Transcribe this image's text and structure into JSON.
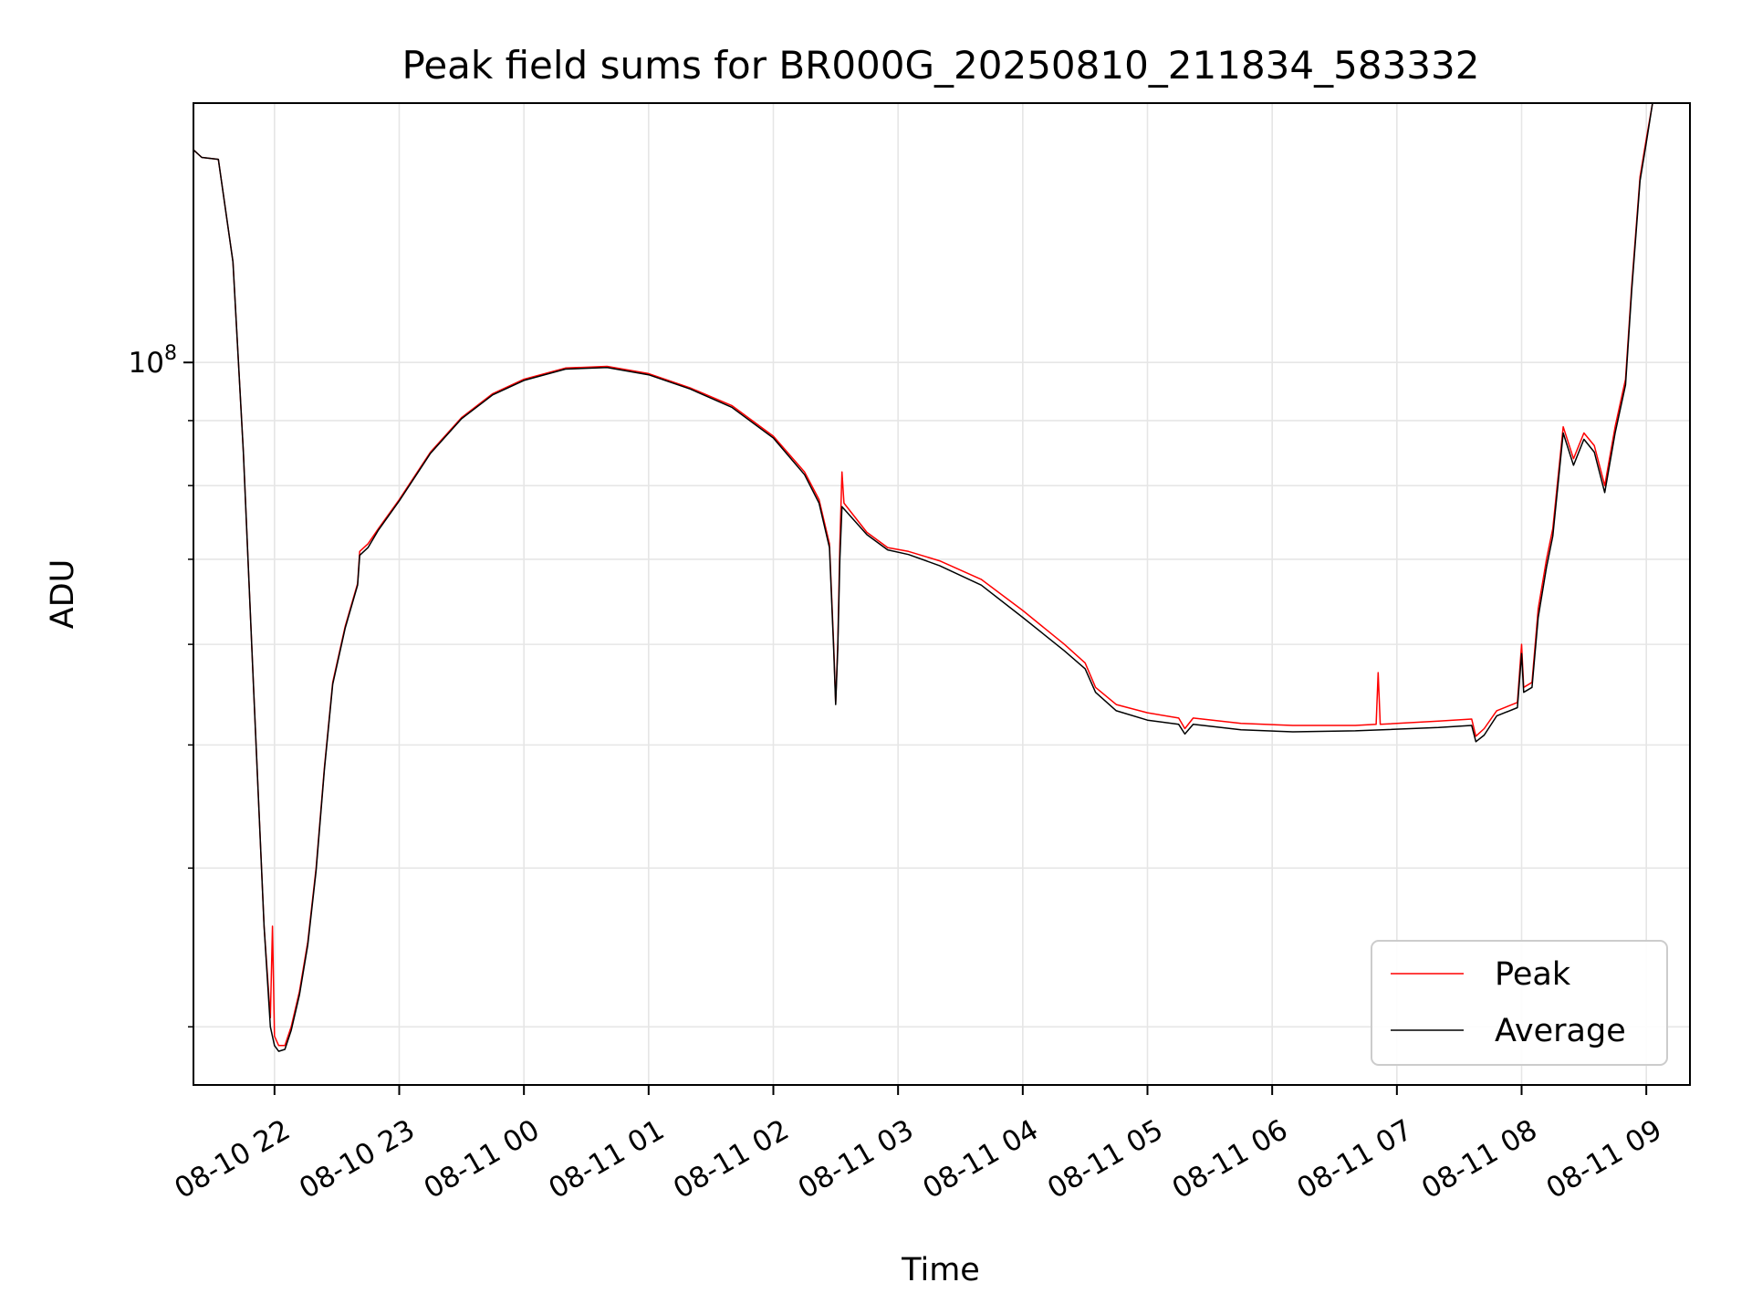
{
  "chart_data": {
    "type": "line",
    "title": "Peak field sums for BR000G_20250810_211834_583332",
    "xlabel": "Time",
    "ylabel": "ADU",
    "x_scale": "time",
    "y_scale": "log",
    "xlim": [
      "2025-08-10 21:21",
      "2025-08-11 09:21"
    ],
    "ylim": [
      27000000,
      160000000
    ],
    "y_tick_labels": [
      {
        "value": 100000000,
        "label": "10^8"
      }
    ],
    "x_tick_labels": [
      {
        "t": "2025-08-10 22:00",
        "label": "08-10 22"
      },
      {
        "t": "2025-08-10 23:00",
        "label": "08-10 23"
      },
      {
        "t": "2025-08-11 00:00",
        "label": "08-11 00"
      },
      {
        "t": "2025-08-11 01:00",
        "label": "08-11 01"
      },
      {
        "t": "2025-08-11 02:00",
        "label": "08-11 02"
      },
      {
        "t": "2025-08-11 03:00",
        "label": "08-11 03"
      },
      {
        "t": "2025-08-11 04:00",
        "label": "08-11 04"
      },
      {
        "t": "2025-08-11 05:00",
        "label": "08-11 05"
      },
      {
        "t": "2025-08-11 06:00",
        "label": "08-11 06"
      },
      {
        "t": "2025-08-11 07:00",
        "label": "08-11 07"
      },
      {
        "t": "2025-08-11 08:00",
        "label": "08-11 08"
      },
      {
        "t": "2025-08-11 09:00",
        "label": "08-11 09"
      }
    ],
    "grid": true,
    "legend_position": "lower-right",
    "series": [
      {
        "name": "Peak",
        "color": "#ff0000",
        "points": [
          [
            "2025-08-10 21:21",
            147000000
          ],
          [
            "2025-08-10 21:25",
            145000000
          ],
          [
            "2025-08-10 21:33",
            144500000
          ],
          [
            "2025-08-10 21:40",
            120000000
          ],
          [
            "2025-08-10 21:45",
            85000000
          ],
          [
            "2025-08-10 21:50",
            55000000
          ],
          [
            "2025-08-10 21:55",
            36000000
          ],
          [
            "2025-08-10 21:58",
            30500000
          ],
          [
            "2025-08-10 21:59",
            36000000
          ],
          [
            "2025-08-10 22:00",
            29500000
          ],
          [
            "2025-08-10 22:02",
            29000000
          ],
          [
            "2025-08-10 22:05",
            29000000
          ],
          [
            "2025-08-10 22:08",
            30000000
          ],
          [
            "2025-08-10 22:12",
            32000000
          ],
          [
            "2025-08-10 22:16",
            35000000
          ],
          [
            "2025-08-10 22:20",
            40000000
          ],
          [
            "2025-08-10 22:24",
            48000000
          ],
          [
            "2025-08-10 22:28",
            56000000
          ],
          [
            "2025-08-10 22:34",
            62000000
          ],
          [
            "2025-08-10 22:40",
            67000000
          ],
          [
            "2025-08-10 22:41",
            71000000
          ],
          [
            "2025-08-10 22:45",
            72000000
          ],
          [
            "2025-08-10 22:50",
            74000000
          ],
          [
            "2025-08-10 23:00",
            78000000
          ],
          [
            "2025-08-10 23:15",
            85000000
          ],
          [
            "2025-08-10 23:30",
            90500000
          ],
          [
            "2025-08-10 23:45",
            94500000
          ],
          [
            "2025-08-11 00:00",
            97000000
          ],
          [
            "2025-08-11 00:20",
            99000000
          ],
          [
            "2025-08-11 00:40",
            99300000
          ],
          [
            "2025-08-11 01:00",
            98000000
          ],
          [
            "2025-08-11 01:20",
            95500000
          ],
          [
            "2025-08-11 01:40",
            92500000
          ],
          [
            "2025-08-11 02:00",
            87500000
          ],
          [
            "2025-08-11 02:15",
            82000000
          ],
          [
            "2025-08-11 02:22",
            78000000
          ],
          [
            "2025-08-11 02:27",
            72000000
          ],
          [
            "2025-08-11 02:29",
            60000000
          ],
          [
            "2025-08-11 02:30",
            54000000
          ],
          [
            "2025-08-11 02:31",
            60000000
          ],
          [
            "2025-08-11 02:32",
            72000000
          ],
          [
            "2025-08-11 02:33",
            82000000
          ],
          [
            "2025-08-11 02:34",
            77500000
          ],
          [
            "2025-08-11 02:45",
            73500000
          ],
          [
            "2025-08-11 02:55",
            71500000
          ],
          [
            "2025-08-11 03:05",
            71000000
          ],
          [
            "2025-08-11 03:20",
            69800000
          ],
          [
            "2025-08-11 03:40",
            67500000
          ],
          [
            "2025-08-11 04:00",
            63800000
          ],
          [
            "2025-08-11 04:20",
            60000000
          ],
          [
            "2025-08-11 04:30",
            58000000
          ],
          [
            "2025-08-11 04:35",
            55500000
          ],
          [
            "2025-08-11 04:45",
            53800000
          ],
          [
            "2025-08-11 05:00",
            53000000
          ],
          [
            "2025-08-11 05:15",
            52500000
          ],
          [
            "2025-08-11 05:18",
            51500000
          ],
          [
            "2025-08-11 05:22",
            52500000
          ],
          [
            "2025-08-11 05:45",
            52000000
          ],
          [
            "2025-08-11 06:10",
            51800000
          ],
          [
            "2025-08-11 06:40",
            51800000
          ],
          [
            "2025-08-11 06:50",
            51900000
          ],
          [
            "2025-08-11 06:51",
            57000000
          ],
          [
            "2025-08-11 06:52",
            51900000
          ],
          [
            "2025-08-11 07:20",
            52200000
          ],
          [
            "2025-08-11 07:36",
            52400000
          ],
          [
            "2025-08-11 07:38",
            50800000
          ],
          [
            "2025-08-11 07:42",
            51500000
          ],
          [
            "2025-08-11 07:48",
            53200000
          ],
          [
            "2025-08-11 07:58",
            54000000
          ],
          [
            "2025-08-11 08:00",
            60000000
          ],
          [
            "2025-08-11 08:01",
            55500000
          ],
          [
            "2025-08-11 08:05",
            56000000
          ],
          [
            "2025-08-11 08:08",
            64000000
          ],
          [
            "2025-08-11 08:12",
            70000000
          ],
          [
            "2025-08-11 08:15",
            74000000
          ],
          [
            "2025-08-11 08:20",
            89000000
          ],
          [
            "2025-08-11 08:25",
            84000000
          ],
          [
            "2025-08-11 08:30",
            88000000
          ],
          [
            "2025-08-11 08:35",
            86000000
          ],
          [
            "2025-08-11 08:40",
            80000000
          ],
          [
            "2025-08-11 08:45",
            89000000
          ],
          [
            "2025-08-11 08:50",
            97000000
          ],
          [
            "2025-08-11 08:53",
            115000000
          ],
          [
            "2025-08-11 08:57",
            140000000
          ],
          [
            "2025-08-11 09:00",
            150000000
          ],
          [
            "2025-08-11 09:03",
            160000000
          ]
        ]
      },
      {
        "name": "Average",
        "color": "#000000",
        "points": [
          [
            "2025-08-10 21:21",
            147000000
          ],
          [
            "2025-08-10 21:25",
            145000000
          ],
          [
            "2025-08-10 21:33",
            144500000
          ],
          [
            "2025-08-10 21:40",
            120000000
          ],
          [
            "2025-08-10 21:45",
            85000000
          ],
          [
            "2025-08-10 21:50",
            55000000
          ],
          [
            "2025-08-10 21:55",
            36000000
          ],
          [
            "2025-08-10 21:58",
            30000000
          ],
          [
            "2025-08-10 22:00",
            29000000
          ],
          [
            "2025-08-10 22:02",
            28700000
          ],
          [
            "2025-08-10 22:05",
            28800000
          ],
          [
            "2025-08-10 22:08",
            29800000
          ],
          [
            "2025-08-10 22:12",
            31800000
          ],
          [
            "2025-08-10 22:16",
            34800000
          ],
          [
            "2025-08-10 22:20",
            39800000
          ],
          [
            "2025-08-10 22:24",
            47800000
          ],
          [
            "2025-08-10 22:28",
            55800000
          ],
          [
            "2025-08-10 22:34",
            61800000
          ],
          [
            "2025-08-10 22:40",
            66800000
          ],
          [
            "2025-08-10 22:41",
            70500000
          ],
          [
            "2025-08-10 22:45",
            71500000
          ],
          [
            "2025-08-10 22:50",
            73800000
          ],
          [
            "2025-08-10 23:00",
            77800000
          ],
          [
            "2025-08-10 23:15",
            84800000
          ],
          [
            "2025-08-10 23:30",
            90300000
          ],
          [
            "2025-08-10 23:45",
            94300000
          ],
          [
            "2025-08-11 00:00",
            96800000
          ],
          [
            "2025-08-11 00:20",
            98800000
          ],
          [
            "2025-08-11 00:40",
            99100000
          ],
          [
            "2025-08-11 01:00",
            97800000
          ],
          [
            "2025-08-11 01:20",
            95300000
          ],
          [
            "2025-08-11 01:40",
            92200000
          ],
          [
            "2025-08-11 02:00",
            87200000
          ],
          [
            "2025-08-11 02:15",
            81600000
          ],
          [
            "2025-08-11 02:22",
            77500000
          ],
          [
            "2025-08-11 02:27",
            71500000
          ],
          [
            "2025-08-11 02:29",
            59500000
          ],
          [
            "2025-08-11 02:30",
            53800000
          ],
          [
            "2025-08-11 02:31",
            59500000
          ],
          [
            "2025-08-11 02:32",
            70000000
          ],
          [
            "2025-08-11 02:33",
            77000000
          ],
          [
            "2025-08-11 02:45",
            73200000
          ],
          [
            "2025-08-11 02:55",
            71200000
          ],
          [
            "2025-08-11 03:05",
            70600000
          ],
          [
            "2025-08-11 03:20",
            69200000
          ],
          [
            "2025-08-11 03:40",
            66800000
          ],
          [
            "2025-08-11 04:00",
            63000000
          ],
          [
            "2025-08-11 04:20",
            59300000
          ],
          [
            "2025-08-11 04:30",
            57400000
          ],
          [
            "2025-08-11 04:35",
            55000000
          ],
          [
            "2025-08-11 04:45",
            53200000
          ],
          [
            "2025-08-11 05:00",
            52300000
          ],
          [
            "2025-08-11 05:15",
            51900000
          ],
          [
            "2025-08-11 05:18",
            51000000
          ],
          [
            "2025-08-11 05:22",
            51900000
          ],
          [
            "2025-08-11 05:45",
            51400000
          ],
          [
            "2025-08-11 06:10",
            51200000
          ],
          [
            "2025-08-11 06:40",
            51300000
          ],
          [
            "2025-08-11 07:20",
            51600000
          ],
          [
            "2025-08-11 07:36",
            51800000
          ],
          [
            "2025-08-11 07:38",
            50300000
          ],
          [
            "2025-08-11 07:42",
            50900000
          ],
          [
            "2025-08-11 07:48",
            52700000
          ],
          [
            "2025-08-11 07:58",
            53500000
          ],
          [
            "2025-08-11 08:00",
            59000000
          ],
          [
            "2025-08-11 08:01",
            55000000
          ],
          [
            "2025-08-11 08:05",
            55500000
          ],
          [
            "2025-08-11 08:08",
            63000000
          ],
          [
            "2025-08-11 08:12",
            69000000
          ],
          [
            "2025-08-11 08:15",
            73000000
          ],
          [
            "2025-08-11 08:20",
            88000000
          ],
          [
            "2025-08-11 08:25",
            83000000
          ],
          [
            "2025-08-11 08:30",
            87000000
          ],
          [
            "2025-08-11 08:35",
            85000000
          ],
          [
            "2025-08-11 08:40",
            79000000
          ],
          [
            "2025-08-11 08:45",
            88000000
          ],
          [
            "2025-08-11 08:50",
            96000000
          ],
          [
            "2025-08-11 08:53",
            114000000
          ],
          [
            "2025-08-11 08:57",
            139000000
          ],
          [
            "2025-08-11 09:00",
            149000000
          ],
          [
            "2025-08-11 09:03",
            160000000
          ]
        ]
      }
    ]
  }
}
